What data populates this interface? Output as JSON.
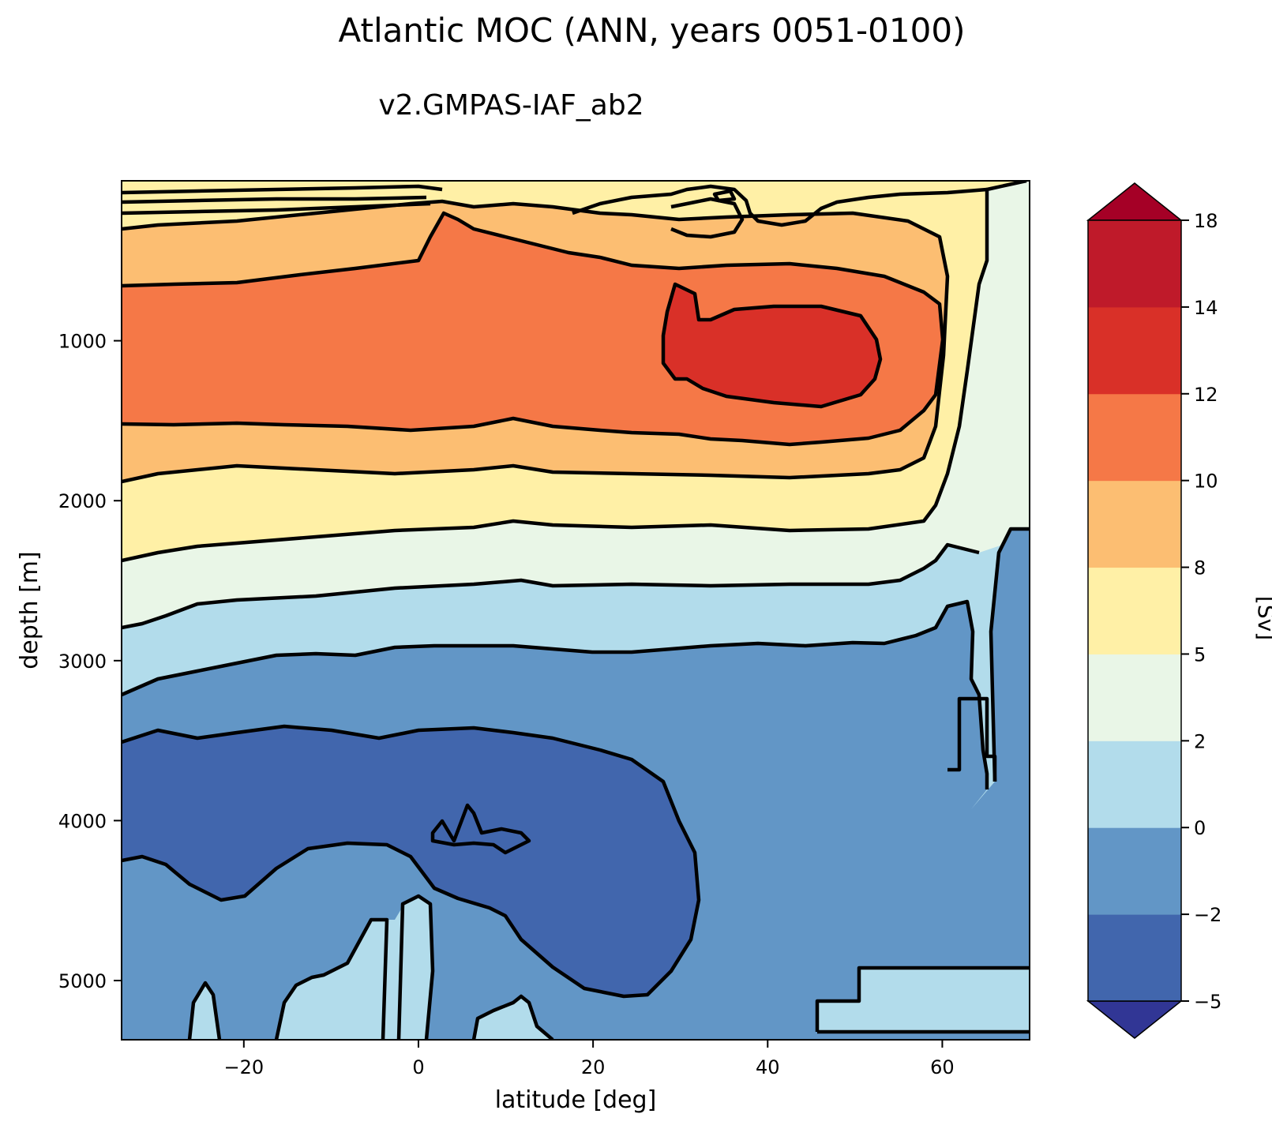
{
  "chart_data": {
    "type": "contourf",
    "title": "Atlantic MOC (ANN, years 0051-0100)",
    "subtitle": "v2.GMPAS-IAF_ab2",
    "xlabel": "latitude [deg]",
    "ylabel": "depth [m]",
    "xlim": [
      -34,
      70
    ],
    "ylim": [
      5370,
      0
    ],
    "y_inverted": true,
    "xticks": [
      -20,
      0,
      20,
      40,
      60
    ],
    "xtick_labels": [
      "−20",
      "0",
      "20",
      "40",
      "60"
    ],
    "yticks": [
      1000,
      2000,
      3000,
      4000,
      5000
    ],
    "ytick_labels": [
      "1000",
      "2000",
      "3000",
      "4000",
      "5000"
    ],
    "colorbar": {
      "label": "[Sv]",
      "levels": [
        -5,
        -2,
        0,
        2,
        5,
        8,
        10,
        12,
        14,
        18
      ],
      "tick_labels": [
        "−5",
        "−2",
        "0",
        "2",
        "5",
        "8",
        "10",
        "12",
        "14",
        "18"
      ],
      "extend": "both",
      "colors": [
        "#313695",
        "#4166ad",
        "#6296c6",
        "#b2dceb",
        "#e9f6e7",
        "#fff0a6",
        "#fcbe72",
        "#f57847",
        "#d93028",
        "#bf1a2a",
        "#a50026"
      ]
    },
    "bands": [
      {
        "range": "2 to 5",
        "x": [
          -34,
          69
        ],
        "depth": [
          2180,
          2700
        ]
      },
      {
        "range": "5 to 8",
        "x": [
          -34,
          65
        ],
        "depth": [
          1890,
          2180
        ]
      },
      {
        "range": "8 to 10",
        "x": [
          -34,
          63
        ],
        "depth": [
          290,
          1890
        ]
      },
      {
        "range": "10 to 12",
        "x": [
          -34,
          61
        ],
        "depth": [
          640,
          1650
        ]
      },
      {
        "range": "12 to 14",
        "x": [
          28,
          52
        ],
        "depth": [
          700,
          1380
        ]
      },
      {
        "range": "-2 to 0",
        "x": [
          -34,
          70
        ],
        "depth": [
          2850,
          5370
        ]
      },
      {
        "range": "-5 to -2",
        "x": [
          -34,
          31
        ],
        "depth": [
          3420,
          5080
        ]
      },
      {
        "range": "0 to 2",
        "x": [
          45,
          70
        ],
        "depth": [
          4920,
          5330
        ]
      }
    ],
    "grid": false
  }
}
